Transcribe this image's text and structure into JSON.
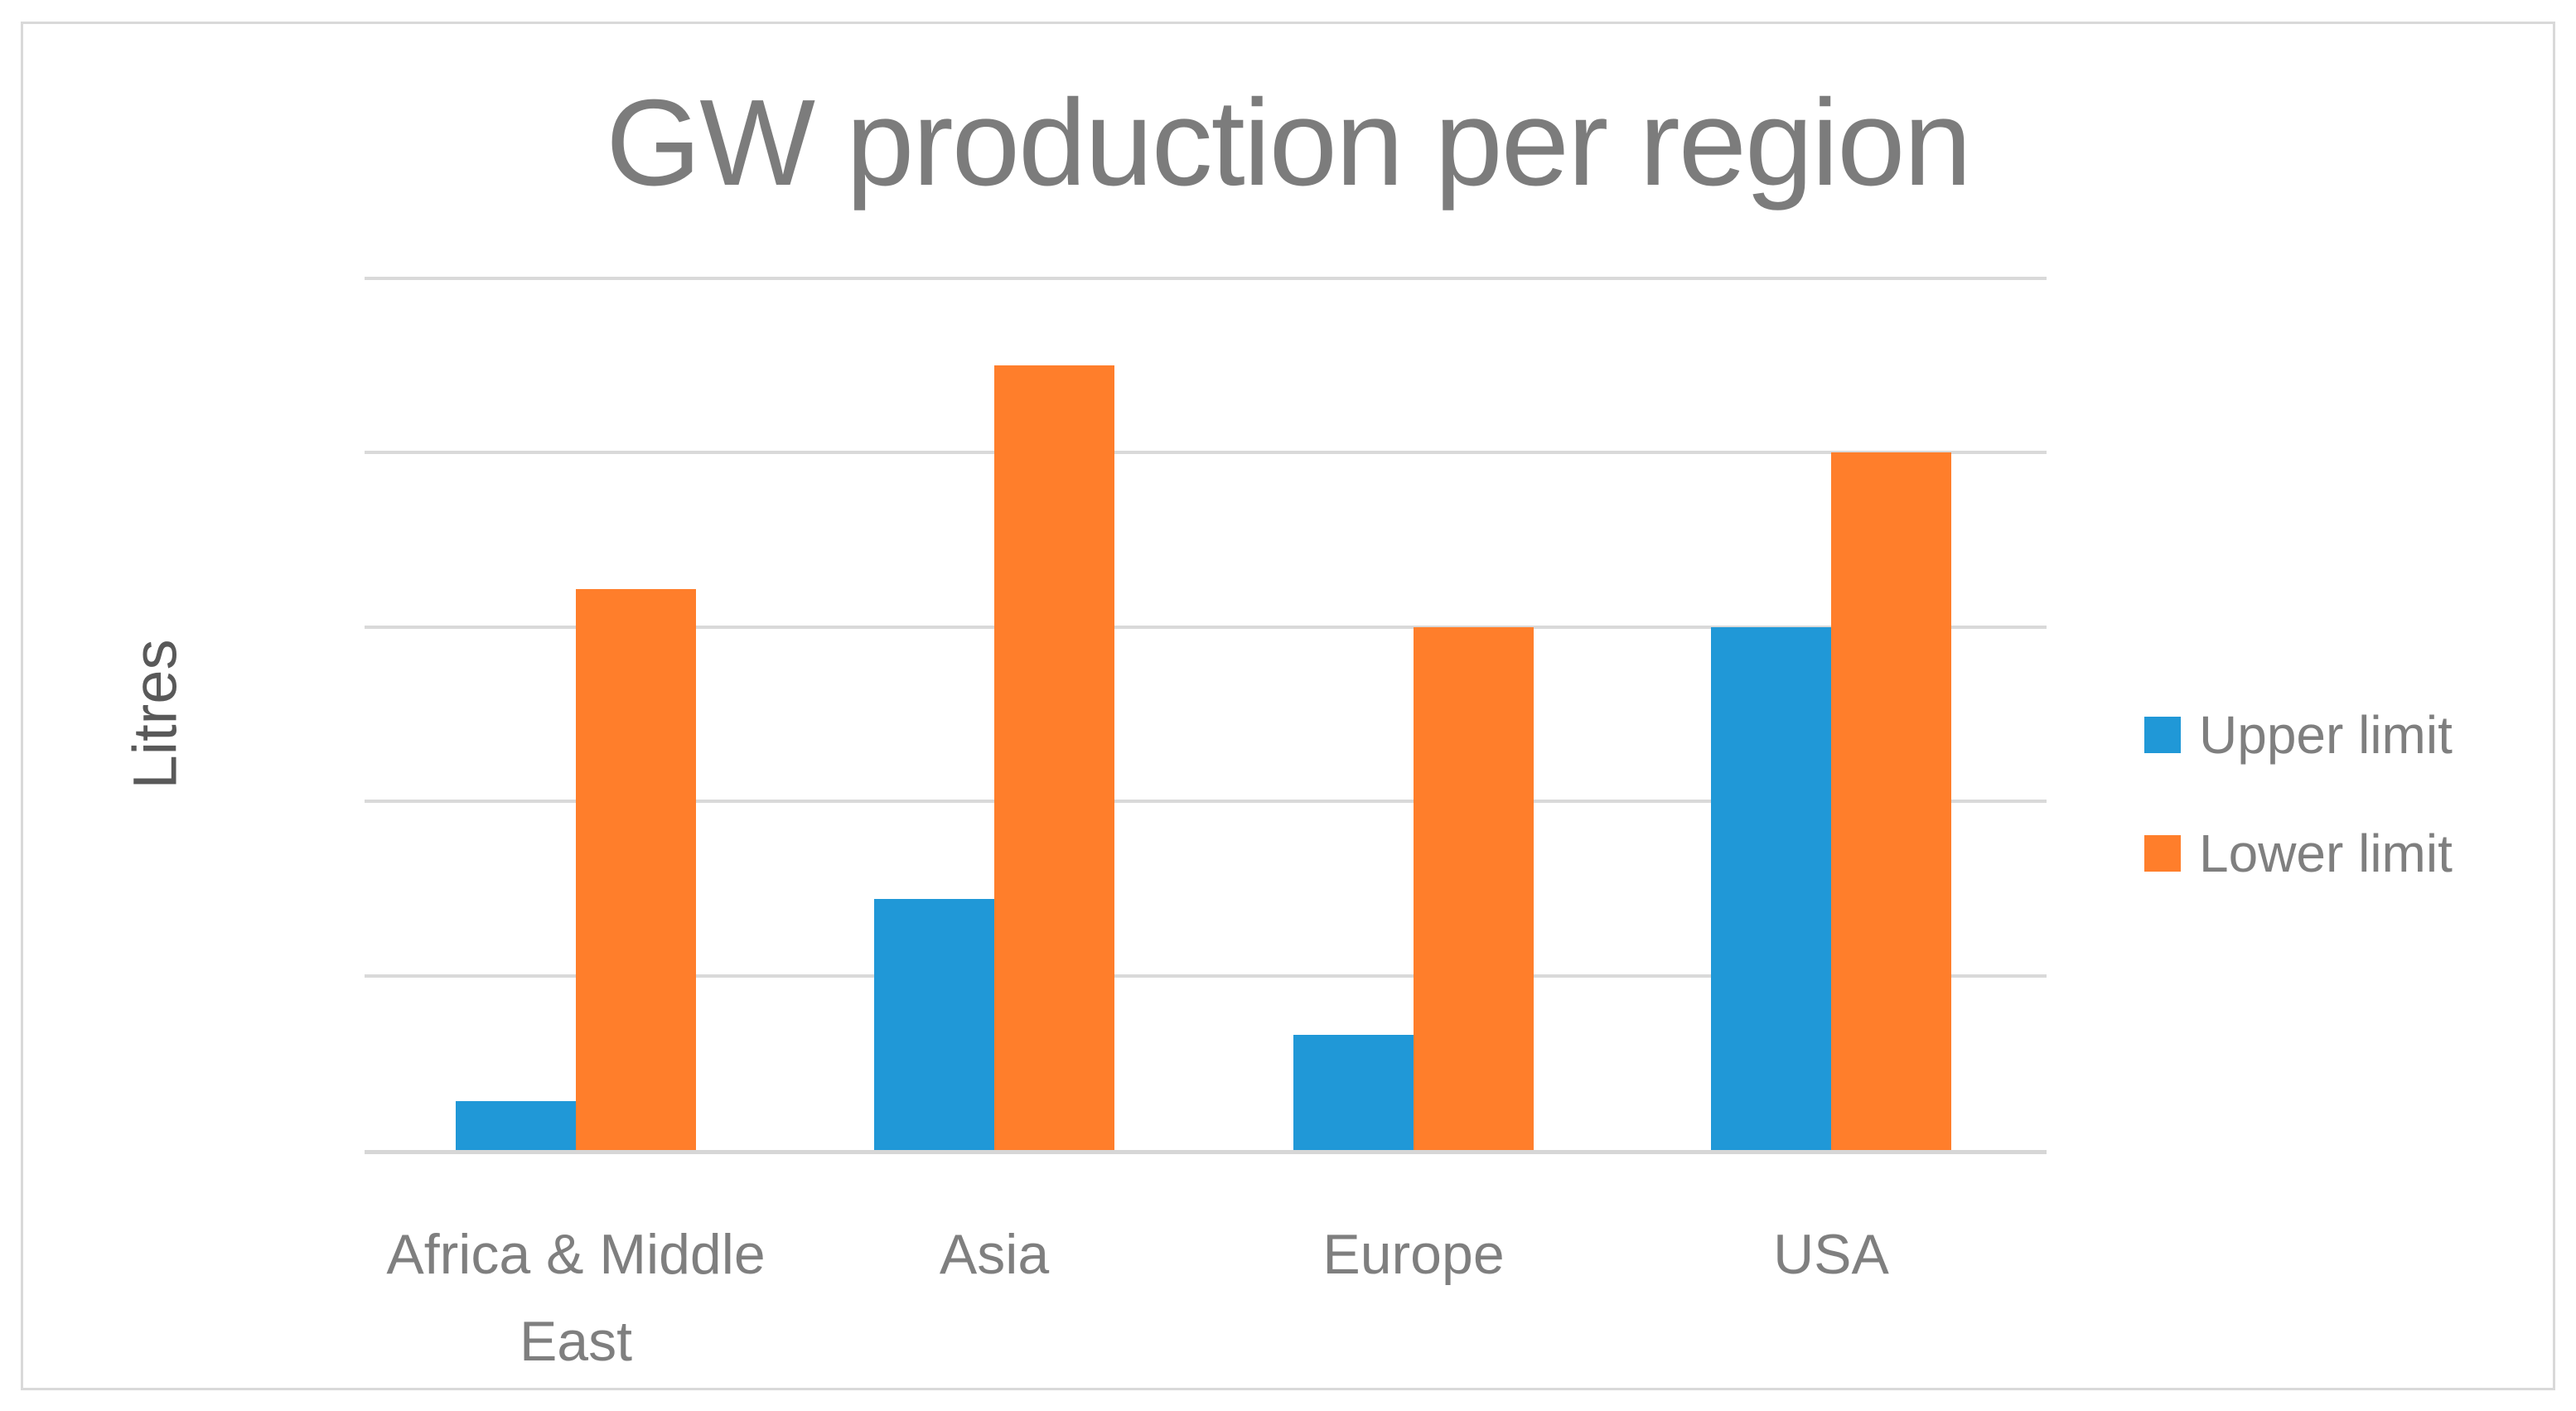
{
  "chart_data": {
    "type": "bar",
    "title": "GW production per region",
    "ylabel": "Litres",
    "xlabel": "",
    "categories": [
      "Africa & Middle East",
      "Asia",
      "Europe",
      "USA"
    ],
    "series": [
      {
        "name": "Upper limit",
        "color": "#2098D7",
        "values": [
          14,
          72,
          33,
          150
        ]
      },
      {
        "name": "Lower limit",
        "color": "#FF7E2B",
        "values": [
          161,
          225,
          150,
          200
        ]
      }
    ],
    "ylim": [
      0,
      250
    ],
    "yticks": [
      0,
      50,
      100,
      150,
      200,
      250
    ],
    "grid": true,
    "gridline_color": "#D9D9D9",
    "legend_position": "right",
    "text_color": "#7F7F7F",
    "axis_title_color": "#595959"
  }
}
